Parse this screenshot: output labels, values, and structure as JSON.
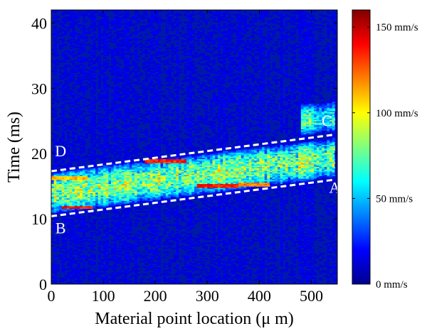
{
  "chart_data": {
    "type": "heatmap",
    "title": "",
    "xlabel": "Material point location (μ m)",
    "ylabel": "Time (ms)",
    "xlim": [
      0,
      550
    ],
    "ylim": [
      0,
      42
    ],
    "x_ticks": [
      "0",
      "100",
      "200",
      "300",
      "400",
      "500"
    ],
    "y_ticks": [
      "0",
      "10",
      "20",
      "30",
      "40"
    ],
    "colorbar": {
      "colormap": "jet",
      "range": [
        0,
        160
      ],
      "unit": "mm/s",
      "tick_labels": [
        "0 mm/s",
        "50 mm/s",
        "100 mm/s",
        "150 mm/s"
      ],
      "tick_values": [
        0,
        50,
        100,
        150
      ]
    },
    "lines": [
      {
        "label": "B-A",
        "style": "dashed",
        "color": "#ffffff",
        "points": [
          [
            0,
            10.4
          ],
          [
            545,
            16.0
          ]
        ]
      },
      {
        "label": "D-C",
        "style": "dashed",
        "color": "#ffffff",
        "points": [
          [
            0,
            17.3
          ],
          [
            545,
            22.9
          ]
        ]
      }
    ],
    "point_labels": [
      {
        "text": "A",
        "x": 545,
        "y": 14.0
      },
      {
        "text": "B",
        "x": 18,
        "y": 7.8
      },
      {
        "text": "C",
        "x": 530,
        "y": 24.2
      },
      {
        "text": "D",
        "x": 18,
        "y": 19.6
      }
    ],
    "background_velocity": 12,
    "bands": [
      {
        "note": "arrival band",
        "x": [
          0,
          545
        ],
        "y_start": [
          10.8,
          16.4
        ],
        "y_end": [
          17.2,
          22.4
        ],
        "peak": 85
      },
      {
        "note": "late band",
        "x": [
          480,
          545
        ],
        "y_start": [
          22.8,
          23.4
        ],
        "y_end": [
          27.5,
          28.0
        ],
        "peak": 65
      }
    ],
    "hot_streaks": [
      {
        "x": [
          20,
          80
        ],
        "y": 11.8,
        "value": 150
      },
      {
        "x": [
          280,
          360
        ],
        "y": 15.1,
        "value": 148
      },
      {
        "x": [
          360,
          420
        ],
        "y": 15.3,
        "value": 130
      },
      {
        "x": [
          180,
          260
        ],
        "y": 18.9,
        "value": 145
      },
      {
        "x": [
          0,
          70
        ],
        "y": 16.3,
        "value": 120
      }
    ]
  }
}
